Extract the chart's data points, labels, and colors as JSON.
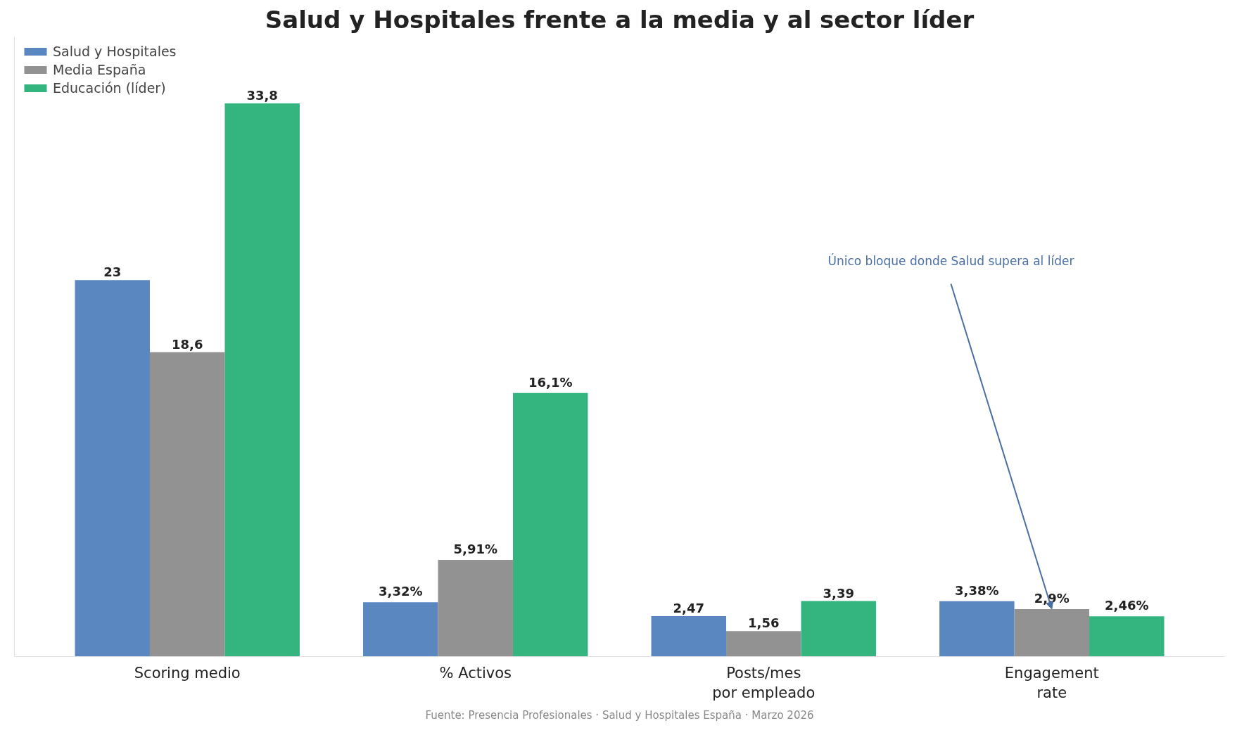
{
  "chart_data": {
    "type": "bar",
    "title": "Salud y Hospitales frente a la media y al sector líder",
    "categories": [
      "Scoring medio",
      "% Activos",
      "Posts/mes\npor empleado",
      "Engagement\nrate"
    ],
    "series": [
      {
        "name": "Salud y Hospitales",
        "color": "#5b87c0",
        "values": [
          23,
          3.32,
          2.47,
          3.38
        ],
        "value_labels": [
          "23",
          "3,32%",
          "2,47",
          "3,38%"
        ]
      },
      {
        "name": "Media España",
        "color": "#929292",
        "values": [
          18.6,
          5.91,
          1.56,
          2.9
        ],
        "value_labels": [
          "18,6",
          "5,91%",
          "1,56",
          "2,9%"
        ]
      },
      {
        "name": "Educación (líder)",
        "color": "#34b57f",
        "values": [
          33.8,
          16.1,
          3.39,
          2.46
        ],
        "value_labels": [
          "33,8",
          "16,1%",
          "3,39",
          "2,46%"
        ]
      }
    ],
    "annotations": [
      {
        "text": "Único bloque donde Salud supera al líder",
        "x": "Engagement\nrate",
        "y": 2.9
      },
      "Fuente: Presencia Profesionales · Salud y Hospitales España · Marzo 2026"
    ],
    "legend": "top left",
    "grid": false,
    "tick_labels": "x"
  }
}
